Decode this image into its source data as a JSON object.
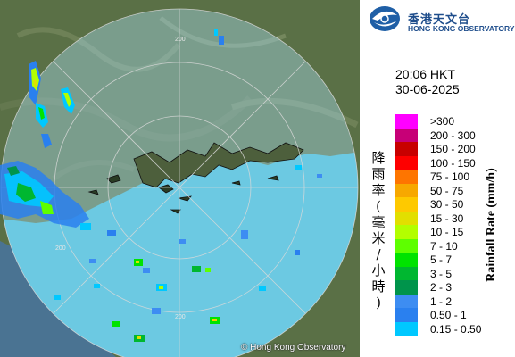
{
  "map": {
    "range_label_top": "200",
    "range_label_left": "200",
    "range_label_bottom": "200",
    "copyright": "© Hong Kong Observatory",
    "colors": {
      "land": "#5a7046",
      "radar_disk": "#a8dcee",
      "sea_outside": "#4a7392",
      "range_ring": "#d9d9d9"
    }
  },
  "logo": {
    "icon": "hko-logo-icon",
    "zh": "香港天文台",
    "en": "HONG KONG OBSERVATORY"
  },
  "timestamp": {
    "time": "20:06 HKT",
    "date": "30-06-2025"
  },
  "legend": {
    "title_zh": "降雨率(毫米/小時)",
    "title_en": "Rainfall Rate (mm/h)",
    "items": [
      {
        "label": ">300",
        "color": "#ff00ff"
      },
      {
        "label": "200 - 300",
        "color": "#c70077"
      },
      {
        "label": "150 - 200",
        "color": "#c80000"
      },
      {
        "label": "100 - 150",
        "color": "#fe0000"
      },
      {
        "label": "75 - 100",
        "color": "#fe7500"
      },
      {
        "label": "50 - 75",
        "color": "#f7a800"
      },
      {
        "label": "30 - 50",
        "color": "#fec900"
      },
      {
        "label": "15 - 30",
        "color": "#e2df00"
      },
      {
        "label": "10 - 15",
        "color": "#b3fe00"
      },
      {
        "label": "7 - 10",
        "color": "#5eff00"
      },
      {
        "label": "5 - 7",
        "color": "#00e300"
      },
      {
        "label": "3 - 5",
        "color": "#00b730"
      },
      {
        "label": "2 - 3",
        "color": "#00944b"
      },
      {
        "label": "1 - 2",
        "color": "#3d8df2"
      },
      {
        "label": "0.50 - 1",
        "color": "#2a80ef"
      },
      {
        "label": "0.15 - 0.50",
        "color": "#00c8ff"
      }
    ]
  }
}
